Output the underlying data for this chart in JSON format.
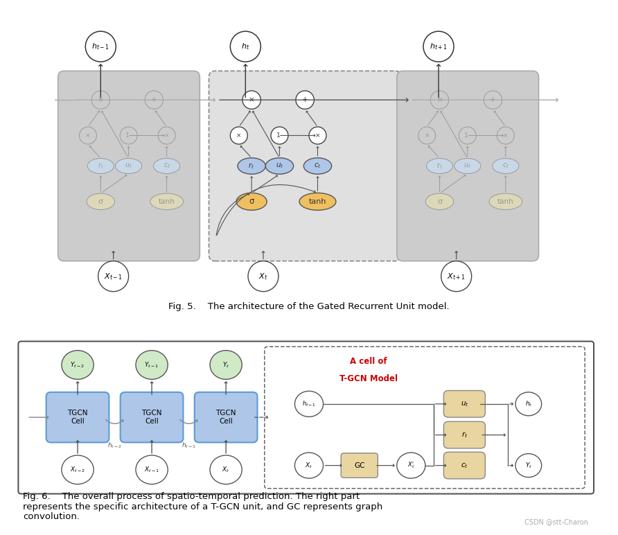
{
  "fig5_caption": "Fig. 5.    The architecture of the Gated Recurrent Unit model.",
  "fig6_caption_line1": "Fig. 6.    The overall process of spatio-temporal prediction. The right part",
  "fig6_caption_line2": "represents the specific architecture of a T-GCN unit, and GC represents graph",
  "fig6_caption_line3": "convolution.",
  "watermark": "CSDN @stt-Charon",
  "bg_color": "#ffffff",
  "side_cell_bg": "#cccccc",
  "active_cell_bg": "#e5e5e5",
  "side_gate_color": "#c8d8e8",
  "side_func_color": "#ddd8b8",
  "active_r_color": "#aec6e8",
  "active_u_color": "#aec6e8",
  "active_c_color": "#aec6e8",
  "active_sigma_color": "#f0c060",
  "active_tanh_color": "#f0c060",
  "tgcn_cell_color": "#aec6e8",
  "tgcn_cell_border": "#5b9bd5",
  "y_node_color": "#d0eac8",
  "gc_color": "#e8d5a0",
  "gate_color": "#e8d5a0",
  "arrow_color": "#555555",
  "side_arrow_color": "#aaaaaa",
  "cell_title_color": "#cc0000",
  "caption_fontsize": 9.5,
  "watermark_fontsize": 7
}
